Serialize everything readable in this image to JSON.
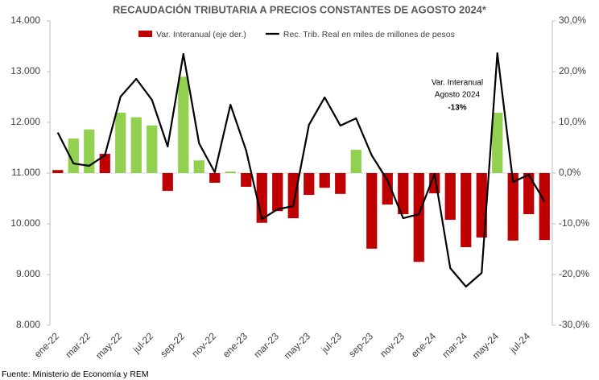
{
  "chart_data": {
    "type": "bar",
    "title": "RECAUDACIÓN TRIBUTARIA A PRECIOS CONSTANTES DE AGOSTO 2024*",
    "categories": [
      "ene-22",
      null,
      "mar-22",
      null,
      "may-22",
      null,
      "jul-22",
      null,
      "sep-22",
      null,
      "nov-22",
      null,
      "ene-23",
      null,
      "mar-23",
      null,
      "may-23",
      null,
      "jul-23",
      null,
      "sep-23",
      null,
      "nov-23",
      null,
      "ene-24",
      null,
      "mar-24",
      null,
      "may-24",
      null,
      "jul-24",
      null
    ],
    "series": [
      {
        "name": "Var. Interanual (eje der.)",
        "type": "bar",
        "axis": "y2",
        "color": "#c00000",
        "colors": [
          "#c00000",
          "#92d050",
          "#92d050",
          "#c00000",
          "#92d050",
          "#92d050",
          "#92d050",
          "#c00000",
          "#92d050",
          "#92d050",
          "#c00000",
          "#92d050",
          "#c00000",
          "#c00000",
          "#c00000",
          "#c00000",
          "#c00000",
          "#c00000",
          "#c00000",
          "#92d050",
          "#c00000",
          "#c00000",
          "#c00000",
          "#c00000",
          "#c00000",
          "#c00000",
          "#c00000",
          "#c00000",
          "#92d050",
          "#c00000",
          "#c00000",
          "#c00000"
        ],
        "values": [
          0.6,
          6.8,
          8.6,
          3.8,
          11.9,
          11.0,
          9.4,
          -3.5,
          19.0,
          2.5,
          -1.9,
          0.3,
          -2.7,
          -9.8,
          -7.5,
          -8.9,
          -4.3,
          -2.9,
          -4.1,
          4.6,
          -14.9,
          -6.2,
          -8.1,
          -17.5,
          -4.0,
          -9.2,
          -14.6,
          -12.7,
          11.9,
          -13.3,
          -8.1,
          -13.2
        ]
      },
      {
        "name": "Rec. Trib. Real en miles de millones de pesos",
        "type": "line",
        "color": "#000000",
        "values": [
          11800,
          11190,
          11143,
          11350,
          12508,
          12857,
          12444,
          11524,
          13349,
          11587,
          11016,
          12349,
          11444,
          10095,
          10286,
          10349,
          11952,
          12492,
          11937,
          12079,
          11349,
          10857,
          10111,
          10190,
          10984,
          9127,
          8762,
          9032,
          13365,
          10825,
          10968,
          10444
        ]
      }
    ],
    "ylim": [
      8000,
      14000
    ],
    "yticks": [
      {
        "value": 8000,
        "label": "8.000"
      },
      {
        "value": 9000,
        "label": "9.000"
      },
      {
        "value": 10000,
        "label": "10.000"
      },
      {
        "value": 11000,
        "label": "11.000"
      },
      {
        "value": 12000,
        "label": "12.000"
      },
      {
        "value": 13000,
        "label": "13.000"
      },
      {
        "value": 14000,
        "label": "14.000"
      }
    ],
    "y2lim": [
      -30,
      30
    ],
    "y2ticks": [
      {
        "value": -30,
        "label": "-30,0%"
      },
      {
        "value": -20,
        "label": "-20,0%"
      },
      {
        "value": -10,
        "label": "-10,0%"
      },
      {
        "value": 0,
        "label": "0,0%"
      },
      {
        "value": 10,
        "label": "10,0%"
      },
      {
        "value": 20,
        "label": "20,0%"
      },
      {
        "value": 30,
        "label": "30,0%"
      }
    ],
    "annotation": [
      "Var. Interanual",
      "Agosto 2024",
      "-13%"
    ],
    "source": "Fuente: Ministerio de Economía y REM"
  }
}
